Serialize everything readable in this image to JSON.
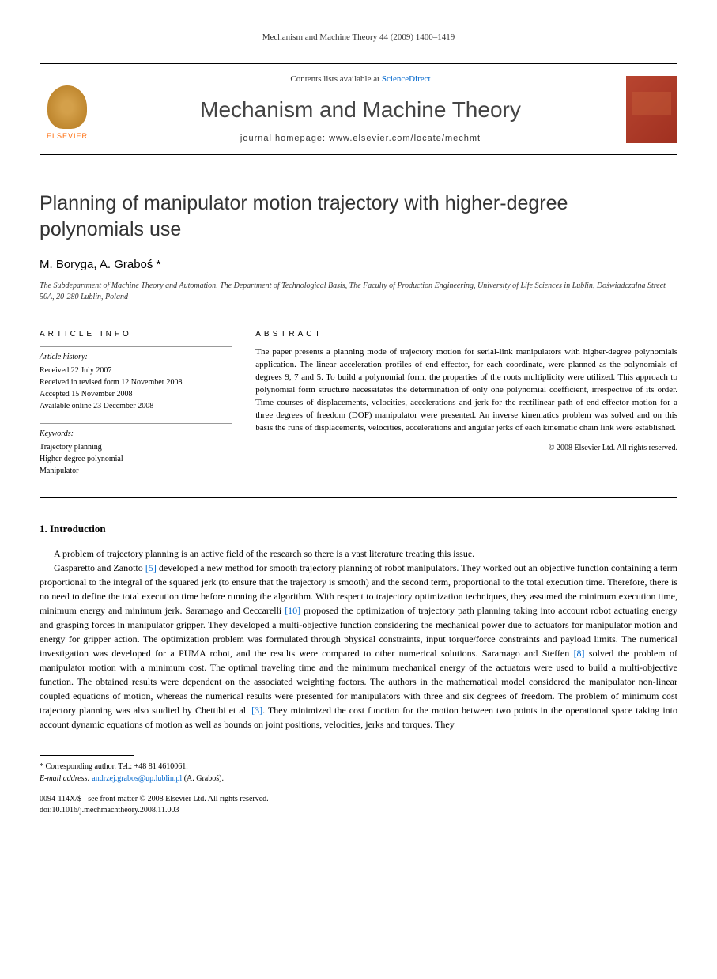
{
  "page_header": "Mechanism and Machine Theory 44 (2009) 1400–1419",
  "masthead": {
    "publisher_logo_text": "ELSEVIER",
    "contents_prefix": "Contents lists available at ",
    "contents_link": "ScienceDirect",
    "journal_name": "Mechanism and Machine Theory",
    "homepage_prefix": "journal homepage: ",
    "homepage_url": "www.elsevier.com/locate/mechmt"
  },
  "article": {
    "title": "Planning of manipulator motion trajectory with higher-degree polynomials use",
    "authors": "M. Boryga, A. Graboś *",
    "affiliation": "The Subdepartment of Machine Theory and Automation, The Department of Technological Basis, The Faculty of Production Engineering, University of Life Sciences in Lublin, Doświadczalna Street 50A, 20-280 Lublin, Poland"
  },
  "info": {
    "label": "ARTICLE INFO",
    "history_heading": "Article history:",
    "history": [
      "Received 22 July 2007",
      "Received in revised form 12 November 2008",
      "Accepted 15 November 2008",
      "Available online 23 December 2008"
    ],
    "keywords_heading": "Keywords:",
    "keywords": [
      "Trajectory planning",
      "Higher-degree polynomial",
      "Manipulator"
    ]
  },
  "abstract": {
    "label": "ABSTRACT",
    "text": "The paper presents a planning mode of trajectory motion for serial-link manipulators with higher-degree polynomials application. The linear acceleration profiles of end-effector, for each coordinate, were planned as the polynomials of degrees 9, 7 and 5. To build a polynomial form, the properties of the roots multiplicity were utilized. This approach to polynomial form structure necessitates the determination of only one polynomial coefficient, irrespective of its order. Time courses of displacements, velocities, accelerations and jerk for the rectilinear path of end-effector motion for a three degrees of freedom (DOF) manipulator were presented. An inverse kinematics problem was solved and on this basis the runs of displacements, velocities, accelerations and angular jerks of each kinematic chain link were established.",
    "copyright": "© 2008 Elsevier Ltd. All rights reserved."
  },
  "body": {
    "section_heading": "1. Introduction",
    "para1": "A problem of trajectory planning is an active field of the research so there is a vast literature treating this issue.",
    "para2_a": "Gasparetto and Zanotto ",
    "para2_ref1": "[5]",
    "para2_b": " developed a new method for smooth trajectory planning of robot manipulators. They worked out an objective function containing a term proportional to the integral of the squared jerk (to ensure that the trajectory is smooth) and the second term, proportional to the total execution time. Therefore, there is no need to define the total execution time before running the algorithm. With respect to trajectory optimization techniques, they assumed the minimum execution time, minimum energy and minimum jerk. Saramago and Ceccarelli ",
    "para2_ref2": "[10]",
    "para2_c": " proposed the optimization of trajectory path planning taking into account robot actuating energy and grasping forces in manipulator gripper. They developed a multi-objective function considering the mechanical power due to actuators for manipulator motion and energy for gripper action. The optimization problem was formulated through physical constraints, input torque/force constraints and payload limits. The numerical investigation was developed for a PUMA robot, and the results were compared to other numerical solutions. Saramago and Steffen ",
    "para2_ref3": "[8]",
    "para2_d": " solved the problem of manipulator motion with a minimum cost. The optimal traveling time and the minimum mechanical energy of the actuators were used to build a multi-objective function. The obtained results were dependent on the associated weighting factors. The authors in the mathematical model considered the manipulator non-linear coupled equations of motion, whereas the numerical results were presented for manipulators with three and six degrees of freedom. The problem of minimum cost trajectory planning was also studied by Chettibi et al. ",
    "para2_ref4": "[3]",
    "para2_e": ". They minimized the cost function for the motion between two points in the operational space taking into account dynamic equations of motion as well as bounds on joint positions, velocities, jerks and torques. They"
  },
  "footer": {
    "corresponding_label": "* Corresponding author. Tel.: +48 81 4610061.",
    "email_label": "E-mail address: ",
    "email": "andrzej.grabos@up.lublin.pl",
    "email_suffix": " (A. Graboś).",
    "copyright_line": "0094-114X/$ - see front matter © 2008 Elsevier Ltd. All rights reserved.",
    "doi": "doi:10.1016/j.mechmachtheory.2008.11.003"
  }
}
